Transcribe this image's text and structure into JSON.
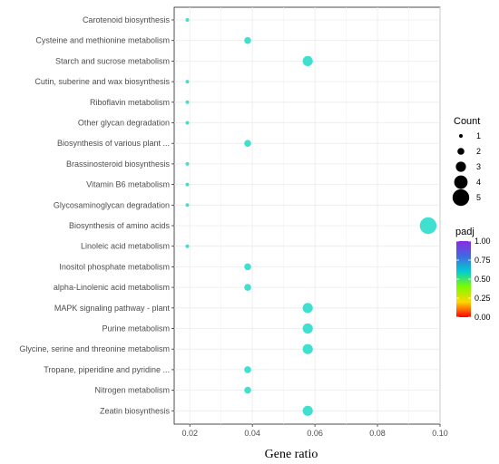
{
  "chart_data": {
    "type": "scatter",
    "xlabel": "Gene ratio",
    "ylabel": "",
    "title": "",
    "xlim": [
      0.015,
      0.1
    ],
    "x_ticks": [
      0.02,
      0.04,
      0.06,
      0.08,
      0.1
    ],
    "x_tick_labels": [
      "0.02",
      "0.04",
      "0.06",
      "0.08",
      "0.10"
    ],
    "grid": true,
    "categories": [
      "Carotenoid biosynthesis",
      "Cysteine and methionine metabolism",
      "Starch and sucrose metabolism",
      "Cutin, suberine and wax biosynthesis",
      "Riboflavin metabolism",
      "Other glycan degradation",
      "Biosynthesis of various plant ...",
      "Brassinosteroid biosynthesis",
      "Vitamin B6 metabolism",
      "Glycosaminoglycan degradation",
      "Biosynthesis of amino acids",
      "Linoleic acid metabolism",
      "Inositol phosphate metabolism",
      "alpha-Linolenic acid metabolism",
      "MAPK signaling pathway - plant",
      "Purine metabolism",
      "Glycine, serine and threonine metabolism",
      "Tropane, piperidine and pyridine ...",
      "Nitrogen metabolism",
      "Zeatin biosynthesis"
    ],
    "points": [
      {
        "category": "Carotenoid biosynthesis",
        "x": 0.0192,
        "count": 1,
        "padj": 0.65
      },
      {
        "category": "Cysteine and methionine metabolism",
        "x": 0.0385,
        "count": 2,
        "padj": 0.65
      },
      {
        "category": "Starch and sucrose metabolism",
        "x": 0.0577,
        "count": 3,
        "padj": 0.65
      },
      {
        "category": "Cutin, suberine and wax biosynthesis",
        "x": 0.0192,
        "count": 1,
        "padj": 0.65
      },
      {
        "category": "Riboflavin metabolism",
        "x": 0.0192,
        "count": 1,
        "padj": 0.65
      },
      {
        "category": "Other glycan degradation",
        "x": 0.0192,
        "count": 1,
        "padj": 0.65
      },
      {
        "category": "Biosynthesis of various plant ...",
        "x": 0.0385,
        "count": 2,
        "padj": 0.65
      },
      {
        "category": "Brassinosteroid biosynthesis",
        "x": 0.0192,
        "count": 1,
        "padj": 0.65
      },
      {
        "category": "Vitamin B6 metabolism",
        "x": 0.0192,
        "count": 1,
        "padj": 0.65
      },
      {
        "category": "Glycosaminoglycan degradation",
        "x": 0.0192,
        "count": 1,
        "padj": 0.65
      },
      {
        "category": "Biosynthesis of amino acids",
        "x": 0.0962,
        "count": 5,
        "padj": 0.65
      },
      {
        "category": "Linoleic acid metabolism",
        "x": 0.0192,
        "count": 1,
        "padj": 0.65
      },
      {
        "category": "Inositol phosphate metabolism",
        "x": 0.0385,
        "count": 2,
        "padj": 0.65
      },
      {
        "category": "alpha-Linolenic acid metabolism",
        "x": 0.0385,
        "count": 2,
        "padj": 0.65
      },
      {
        "category": "MAPK signaling pathway - plant",
        "x": 0.0577,
        "count": 3,
        "padj": 0.65
      },
      {
        "category": "Purine metabolism",
        "x": 0.0577,
        "count": 3,
        "padj": 0.65
      },
      {
        "category": "Glycine, serine and threonine metabolism",
        "x": 0.0577,
        "count": 3,
        "padj": 0.65
      },
      {
        "category": "Tropane, piperidine and pyridine ...",
        "x": 0.0385,
        "count": 2,
        "padj": 0.65
      },
      {
        "category": "Nitrogen metabolism",
        "x": 0.0385,
        "count": 2,
        "padj": 0.65
      },
      {
        "category": "Zeatin biosynthesis",
        "x": 0.0577,
        "count": 3,
        "padj": 0.65
      }
    ],
    "point_color": "#40E0D0",
    "legend_size": {
      "title": "Count",
      "values": [
        1,
        2,
        3,
        4,
        5
      ],
      "labels": [
        "1",
        "2",
        "3",
        "4",
        "5"
      ]
    },
    "legend_color": {
      "title": "padj",
      "range": [
        0.0,
        1.0
      ],
      "ticks": [
        1.0,
        0.75,
        0.5,
        0.25,
        0.0
      ],
      "tick_labels": [
        "1.00",
        "0.75",
        "0.50",
        "0.25",
        "0.00"
      ],
      "colors_top_to_bottom": [
        "#8A2BE2",
        "#4169E1",
        "#00CED1",
        "#7CFC00",
        "#FFD700",
        "#FF0000"
      ]
    },
    "legend_placement": "right"
  }
}
